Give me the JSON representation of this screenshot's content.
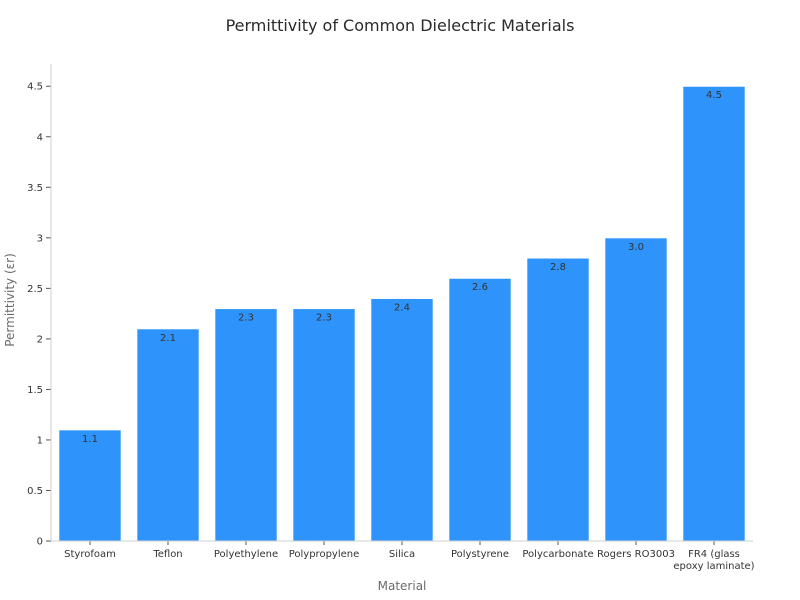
{
  "chart_data": {
    "type": "bar",
    "title": "Permittivity of Common Dielectric Materials",
    "xlabel": "Material",
    "ylabel": "Permittivity (εr)",
    "categories": [
      "Styrofoam",
      "Teflon",
      "Polyethylene",
      "Polypropylene",
      "Silica",
      "Polystyrene",
      "Polycarbonate",
      "Rogers RO3003",
      "FR4 (glass epoxy laminate)"
    ],
    "category_display": [
      [
        "Styrofoam"
      ],
      [
        "Teflon"
      ],
      [
        "Polyethylene"
      ],
      [
        "Polypropylene"
      ],
      [
        "Silica"
      ],
      [
        "Polystyrene"
      ],
      [
        "Polycarbonate"
      ],
      [
        "Rogers RO3003"
      ],
      [
        "FR4 (glass",
        "epoxy laminate)"
      ]
    ],
    "values": [
      1.1,
      2.1,
      2.3,
      2.3,
      2.4,
      2.6,
      2.8,
      3.0,
      4.5
    ],
    "value_labels": [
      "1.1",
      "2.1",
      "2.3",
      "2.3",
      "2.4",
      "2.6",
      "2.8",
      "3.0",
      "4.5"
    ],
    "yticks": [
      0,
      0.5,
      1,
      1.5,
      2,
      2.5,
      3,
      3.5,
      4,
      4.5
    ],
    "ytick_labels": [
      "0",
      "0.5",
      "1",
      "1.5",
      "2",
      "2.5",
      "3",
      "3.5",
      "4",
      "4.5"
    ],
    "ylim": [
      0,
      4.72
    ],
    "bar_color": "#2e93fa",
    "grid": false,
    "legend": "none"
  }
}
